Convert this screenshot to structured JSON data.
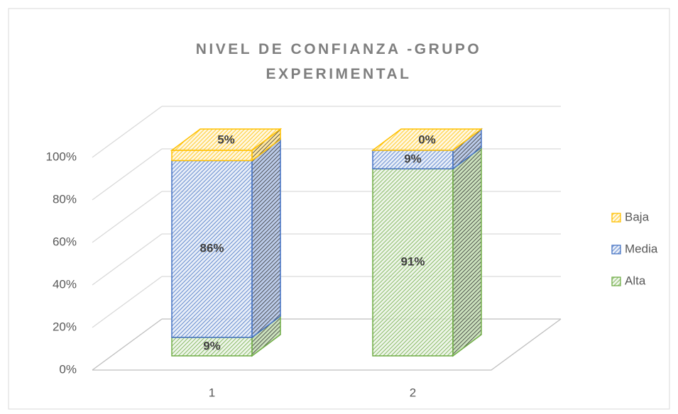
{
  "chart_data": {
    "type": "bar3d_stacked",
    "title": "NIVEL DE CONFIANZA -GRUPO EXPERIMENTAL",
    "categories": [
      "1",
      "2"
    ],
    "series": [
      {
        "name": "Alta",
        "color": "#70ad47",
        "values": [
          9,
          91
        ],
        "value_labels": [
          "9%",
          "91%"
        ]
      },
      {
        "name": "Media",
        "color": "#4472c4",
        "values": [
          86,
          9
        ],
        "value_labels": [
          "86%",
          "9%"
        ]
      },
      {
        "name": "Baja",
        "color": "#ffc000",
        "values": [
          5,
          0
        ],
        "value_labels": [
          "5%",
          "0%"
        ]
      }
    ],
    "ylim": [
      0,
      100
    ],
    "yticks": [
      {
        "value": 0,
        "label": "0%"
      },
      {
        "value": 20,
        "label": "20%"
      },
      {
        "value": 40,
        "label": "40%"
      },
      {
        "value": 60,
        "label": "60%"
      },
      {
        "value": 80,
        "label": "80%"
      },
      {
        "value": 100,
        "label": "100%"
      }
    ],
    "grid": true,
    "legend": "right"
  }
}
